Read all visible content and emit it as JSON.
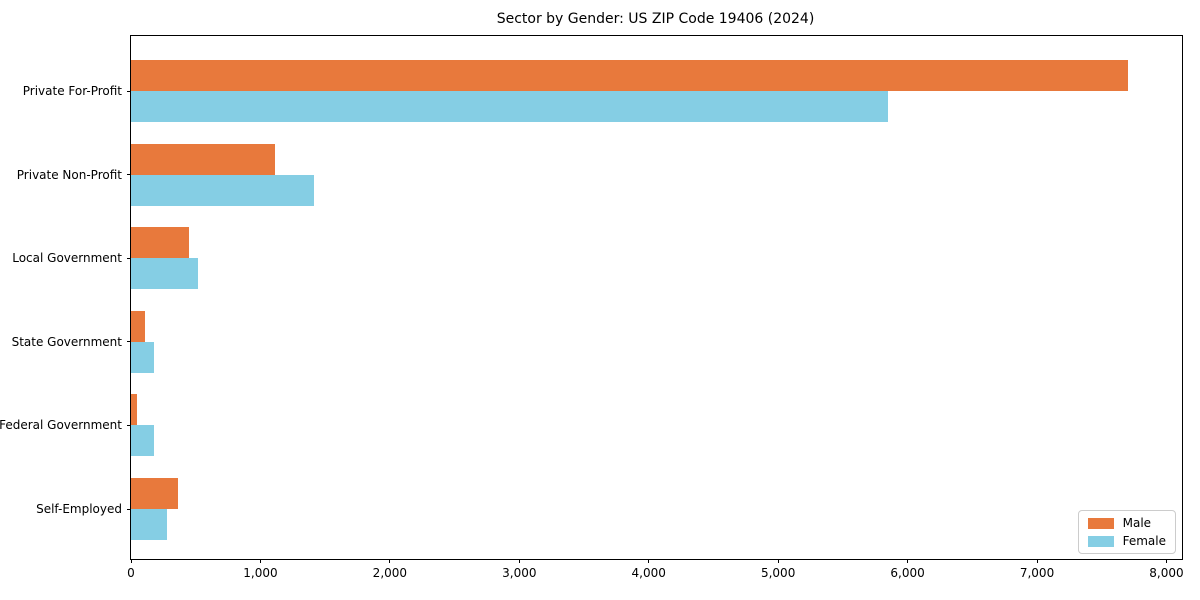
{
  "chart_data": {
    "type": "bar",
    "orientation": "horizontal",
    "title": "Sector by Gender: US ZIP Code 19406 (2024)",
    "xlabel": "",
    "ylabel": "",
    "categories": [
      "Private For-Profit",
      "Private Non-Profit",
      "Local Government",
      "State Government",
      "Federal Government",
      "Self-Employed"
    ],
    "series": [
      {
        "name": "Male",
        "color": "#e8793c",
        "values": [
          7700,
          1110,
          450,
          110,
          45,
          365
        ]
      },
      {
        "name": "Female",
        "color": "#85cee4",
        "values": [
          5850,
          1410,
          520,
          180,
          180,
          275
        ]
      }
    ],
    "xlim": [
      0,
      8120
    ],
    "xticks": [
      0,
      1000,
      2000,
      3000,
      4000,
      5000,
      6000,
      7000,
      8000
    ],
    "xtick_labels": [
      "0",
      "1,000",
      "2,000",
      "3,000",
      "4,000",
      "5,000",
      "6,000",
      "7,000",
      "8,000"
    ],
    "grid": false,
    "legend": {
      "position": "lower right",
      "entries": [
        "Male",
        "Female"
      ]
    }
  }
}
